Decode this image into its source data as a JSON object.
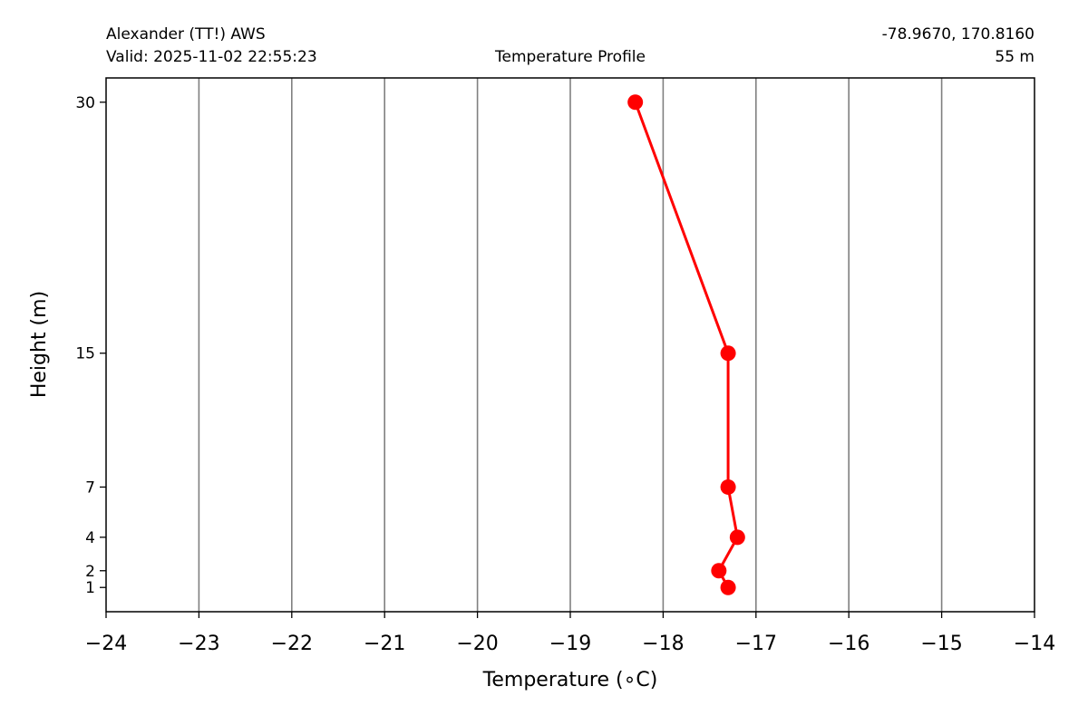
{
  "header": {
    "station": "Alexander (TT!) AWS",
    "valid": "Valid: 2025-11-02 22:55:23",
    "title": "Temperature Profile",
    "coords": "-78.9670, 170.8160",
    "elevation": "55 m"
  },
  "chart_data": {
    "type": "line",
    "title": "Temperature Profile",
    "xlabel": "Temperature (∘C)",
    "ylabel": "Height (m)",
    "xlim": [
      -24,
      -14
    ],
    "ylim": [
      -0.45,
      31.45
    ],
    "xticks": [
      -24,
      -23,
      -22,
      -21,
      -20,
      -19,
      -18,
      -17,
      -16,
      -15,
      -14
    ],
    "xtick_labels": [
      "−24",
      "−23",
      "−22",
      "−21",
      "−20",
      "−19",
      "−18",
      "−17",
      "−16",
      "−15",
      "−14"
    ],
    "yticks": [
      1,
      2,
      4,
      7,
      15,
      30
    ],
    "ytick_labels": [
      "1",
      "2",
      "4",
      "7",
      "15",
      "30"
    ],
    "grid": "vertical",
    "series": [
      {
        "x": [
          -17.3,
          -17.4,
          -17.2,
          -17.3,
          -17.3,
          -18.3
        ],
        "y": [
          1,
          2,
          4,
          7,
          15,
          30
        ],
        "color": "#ff0000",
        "marker": "circle"
      }
    ]
  }
}
